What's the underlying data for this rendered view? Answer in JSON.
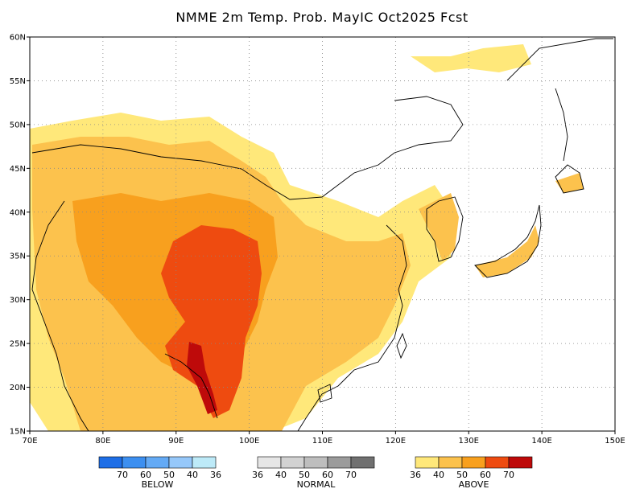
{
  "title": "NMME 2m Temp. Prob. MayIC  Oct2025 Fcst",
  "map": {
    "lon_range": [
      70,
      150
    ],
    "lat_range": [
      15,
      60
    ],
    "lon_ticks": [
      "70E",
      "80E",
      "90E",
      "100E",
      "110E",
      "120E",
      "130E",
      "140E",
      "150E"
    ],
    "lat_ticks": [
      "15N",
      "20N",
      "25N",
      "30N",
      "35N",
      "40N",
      "45N",
      "50N",
      "55N",
      "60N"
    ],
    "gridlines": "dotted"
  },
  "legend": {
    "below": {
      "title": "BELOW",
      "colors": [
        "#1e6ee6",
        "#3c8ff0",
        "#64aaf5",
        "#96c8fa",
        "#bdeaf8"
      ],
      "labels": [
        "70",
        "60",
        "50",
        "40",
        "36"
      ]
    },
    "normal": {
      "title": "NORMAL",
      "colors": [
        "#e6e6e6",
        "#d2d2d2",
        "#bebebe",
        "#9b9b9b",
        "#707070"
      ],
      "labels": [
        "36",
        "40",
        "50",
        "60",
        "70"
      ]
    },
    "above": {
      "title": "ABOVE",
      "colors": [
        "#ffe87a",
        "#fcc24d",
        "#f8a01e",
        "#ee4b10",
        "#be0a0a"
      ],
      "labels": [
        "36",
        "40",
        "50",
        "60",
        "70"
      ]
    }
  },
  "regions": [
    {
      "name": "above-36-40-widespread",
      "category": "above",
      "level": "40"
    },
    {
      "name": "above-50-60-tibet-sichuan",
      "category": "above",
      "level": "60"
    },
    {
      "name": "above-60-70-myanmar",
      "category": "above",
      "level": "70"
    }
  ]
}
